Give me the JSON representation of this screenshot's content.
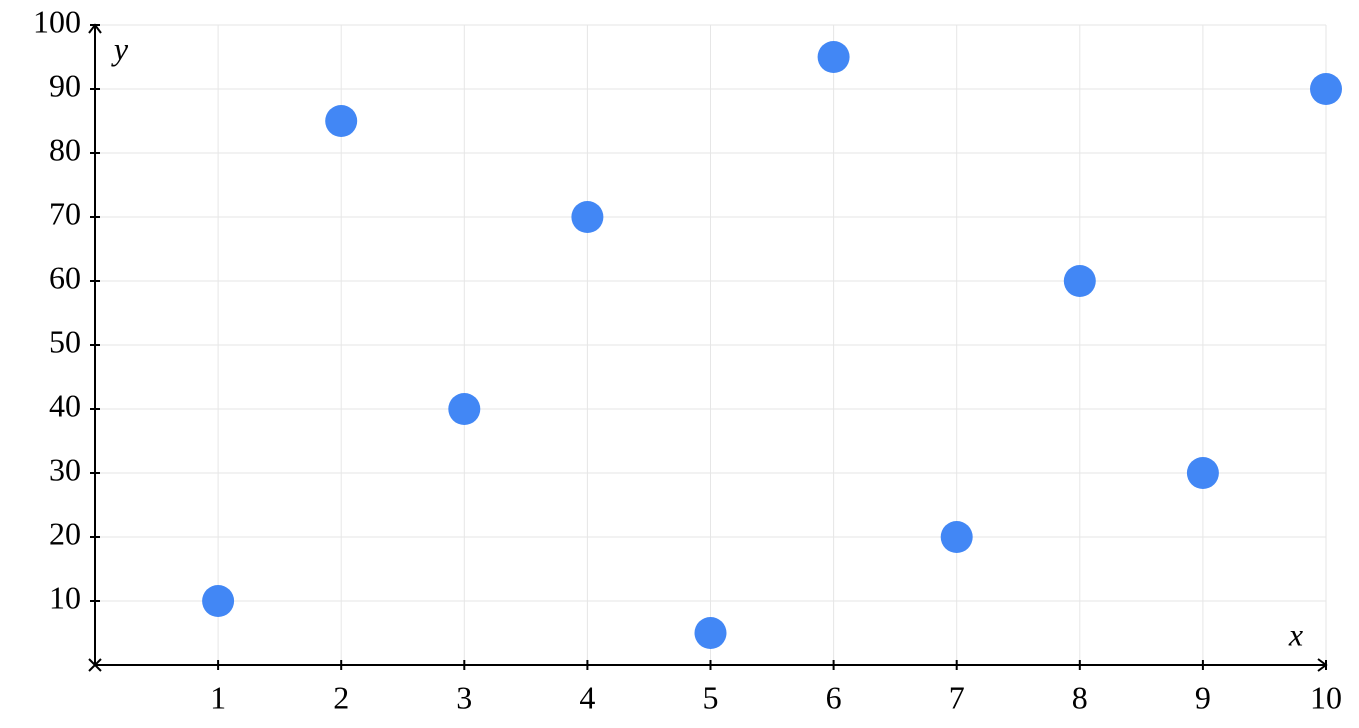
{
  "chart_data": {
    "type": "scatter",
    "x_label": "x",
    "y_label": "y",
    "series": [
      {
        "color": "#4287f5",
        "x": [
          1,
          2,
          3,
          4,
          5,
          6,
          7,
          8,
          9,
          10
        ],
        "values": [
          10,
          85,
          40,
          70,
          5,
          95,
          20,
          60,
          30,
          90
        ]
      }
    ],
    "xlim": [
      0,
      10
    ],
    "ylim": [
      0,
      100
    ],
    "xticks": [
      1,
      2,
      3,
      4,
      5,
      6,
      7,
      8,
      9,
      10
    ],
    "yticks": [
      10,
      20,
      30,
      40,
      50,
      60,
      70,
      80,
      90,
      100
    ],
    "grid": true
  }
}
